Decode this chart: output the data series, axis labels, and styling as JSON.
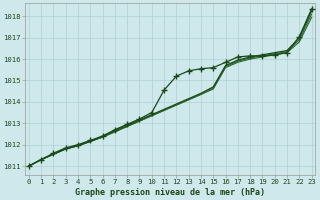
{
  "title": "Graphe pression niveau de la mer (hPa)",
  "xlabel_ticks": [
    0,
    1,
    2,
    3,
    4,
    5,
    6,
    7,
    8,
    9,
    10,
    11,
    12,
    13,
    14,
    15,
    16,
    17,
    18,
    19,
    20,
    21,
    22,
    23
  ],
  "ylim": [
    1010.6,
    1018.6
  ],
  "xlim": [
    -0.3,
    23.3
  ],
  "yticks": [
    1011,
    1012,
    1013,
    1014,
    1015,
    1016,
    1017,
    1018
  ],
  "bg_color": "#cfe8eb",
  "grid_color": "#aed0d4",
  "line_color": "#2d6a2d",
  "line_color2": "#1a4a1a",
  "series_base": [
    1011.0,
    1011.3,
    1011.55,
    1011.8,
    1011.95,
    1012.15,
    1012.35,
    1012.6,
    1012.85,
    1013.1,
    1013.35,
    1013.6,
    1013.85,
    1014.1,
    1014.35,
    1014.6,
    1015.6,
    1015.85,
    1016.0,
    1016.1,
    1016.2,
    1016.3,
    1016.8,
    1017.95
  ],
  "series_mid1": [
    1011.0,
    1011.3,
    1011.55,
    1011.8,
    1011.95,
    1012.15,
    1012.35,
    1012.6,
    1012.85,
    1013.1,
    1013.35,
    1013.6,
    1013.85,
    1014.1,
    1014.35,
    1014.65,
    1015.65,
    1015.9,
    1016.05,
    1016.15,
    1016.25,
    1016.35,
    1016.9,
    1018.1
  ],
  "series_top": [
    1011.0,
    1011.3,
    1011.55,
    1011.8,
    1011.95,
    1012.15,
    1012.4,
    1012.65,
    1012.9,
    1013.15,
    1013.4,
    1013.65,
    1013.9,
    1014.15,
    1014.4,
    1014.7,
    1015.7,
    1015.95,
    1016.1,
    1016.2,
    1016.3,
    1016.4,
    1017.0,
    1018.25
  ],
  "series_markers": [
    1011.0,
    1011.3,
    1011.6,
    1011.85,
    1012.0,
    1012.2,
    1012.4,
    1012.7,
    1012.95,
    1013.2,
    1013.5,
    1014.55,
    1015.2,
    1015.45,
    1015.55,
    1015.6,
    1015.85,
    1016.1,
    1016.15,
    1016.15,
    1016.2,
    1016.3,
    1017.05,
    1018.35
  ]
}
